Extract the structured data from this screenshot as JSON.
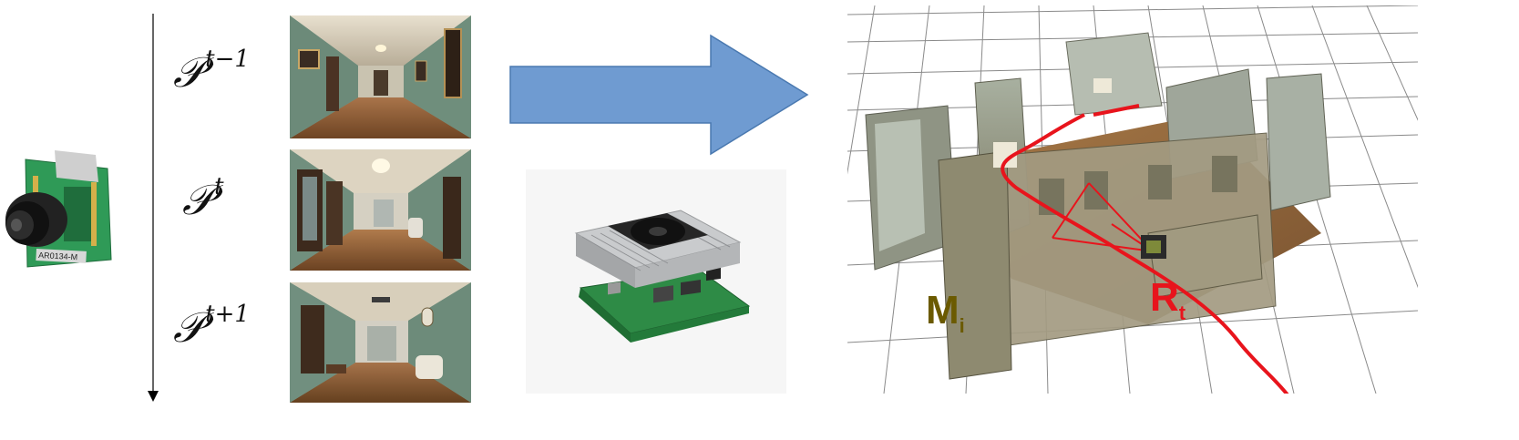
{
  "camera": {
    "model_text": "AR0134-M"
  },
  "frames": [
    {
      "symbol": "𝒫",
      "superscript": "t−1"
    },
    {
      "symbol": "𝒫",
      "superscript": "t"
    },
    {
      "symbol": "𝒫",
      "superscript": "t+1"
    }
  ],
  "map": {
    "map_label": "M",
    "map_sub": "i",
    "robot_label": "R",
    "robot_sub": "t"
  },
  "colors": {
    "arrow_fill": "#6f9bd1",
    "arrow_stroke": "#4a79b0",
    "trajectory": "#e8141c",
    "map_label": "#6b5a00",
    "robot_label": "#e8141c"
  }
}
